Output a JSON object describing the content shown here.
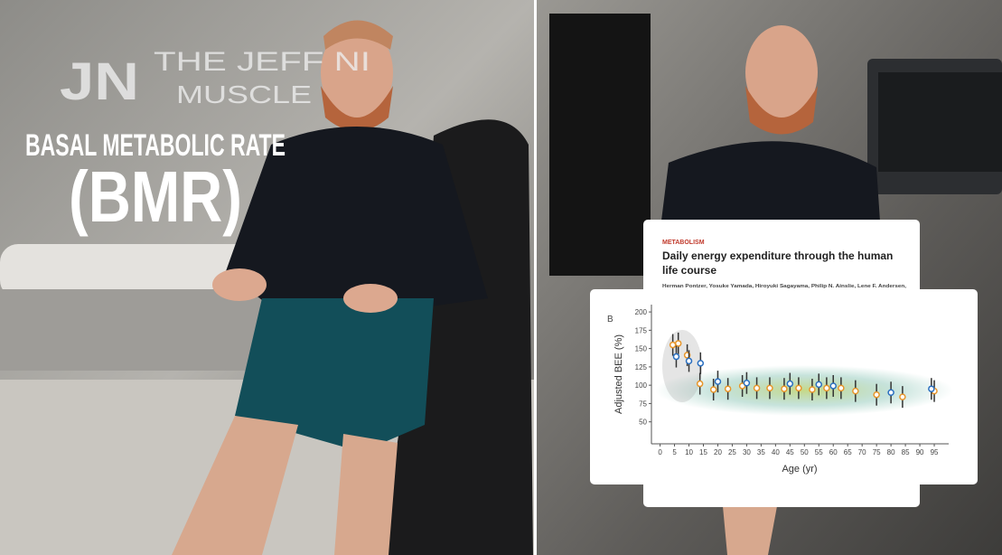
{
  "left_panel": {
    "logo_mark": "JN",
    "logo_line1": "THE JEFF NI",
    "logo_line2": "MUSCLE",
    "caption_line1": "BASAL METABOLIC RATE",
    "caption_line2": "(BMR)"
  },
  "paper": {
    "section": "METABOLISM",
    "title_line1": "Daily energy expenditure through the human",
    "title_line2": "life course",
    "authors": "Herman Pontzer, Yosuke Yamada, Hiroyuki Sagayama, Philip N. Ainslie, Lene F. Andersen,"
  },
  "chart_data": {
    "type": "scatter",
    "panel_label": "B",
    "ylabel": "Adjusted BEE (%)",
    "xlabel": "Age (yr)",
    "xlim": [
      -3,
      100
    ],
    "ylim": [
      20,
      210
    ],
    "xticks": [
      0,
      5,
      10,
      15,
      20,
      25,
      30,
      35,
      40,
      45,
      50,
      55,
      60,
      65,
      70,
      75,
      80,
      85,
      90,
      95
    ],
    "yticks": [
      50,
      75,
      100,
      125,
      150,
      175,
      200
    ],
    "series": [
      {
        "color": "#e8962a",
        "x": [
          4.4,
          6.3,
          9.4,
          13.8,
          18.5,
          23.5,
          28.5,
          33.5,
          38,
          43,
          48,
          52.7,
          57.7,
          62.7,
          67.7,
          75,
          84,
          95
        ],
        "values": [
          155,
          157,
          141,
          102,
          94,
          95,
          99,
          96,
          96,
          95,
          96,
          94,
          96,
          96,
          92,
          87,
          84,
          92
        ]
      },
      {
        "color": "#2a6fc0",
        "x": [
          5.6,
          10,
          14,
          20,
          30,
          45,
          55,
          60,
          80,
          94
        ],
        "values": [
          139,
          133,
          130,
          105,
          103,
          102,
          101,
          99,
          90,
          95
        ]
      }
    ]
  }
}
